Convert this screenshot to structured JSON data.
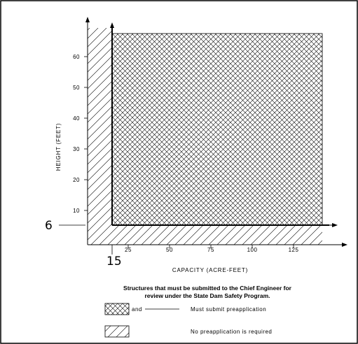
{
  "diagram": {
    "y_axis_title": "HEIGHT (FEET)",
    "x_axis_title": "CAPACITY (ACRE-FEET)",
    "y_ticks": [
      "10",
      "20",
      "30",
      "40",
      "50",
      "60"
    ],
    "x_ticks": [
      "25",
      "50",
      "75",
      "100",
      "125"
    ],
    "threshold_height": "6",
    "threshold_capacity": "15",
    "caption_line1": "Structures that must be submitted to the Chief Engineer for",
    "caption_line2": "review under the State Dam Safety Program.",
    "legend": [
      {
        "pattern": "crosshatch",
        "joiner": "and",
        "text": "Must submit preapplication"
      },
      {
        "pattern": "diagonal",
        "joiner": "",
        "text": "No preapplication is required"
      }
    ]
  }
}
